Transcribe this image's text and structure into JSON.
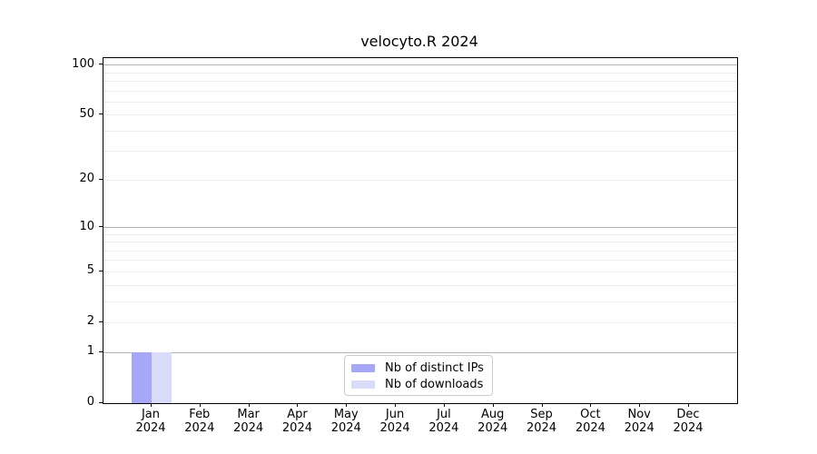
{
  "chart_data": {
    "type": "bar",
    "title": "velocyto.R 2024",
    "categories": [
      "Jan",
      "Feb",
      "Mar",
      "Apr",
      "May",
      "Jun",
      "Jul",
      "Aug",
      "Sep",
      "Oct",
      "Nov",
      "Dec"
    ],
    "category_year": "2024",
    "series": [
      {
        "name": "Nb of distinct IPs",
        "color": "#a7a7f7",
        "values": [
          1,
          0,
          0,
          0,
          0,
          0,
          0,
          0,
          0,
          0,
          0,
          0
        ]
      },
      {
        "name": "Nb of downloads",
        "color": "#dadaf9",
        "values": [
          1,
          0,
          0,
          0,
          0,
          0,
          0,
          0,
          0,
          0,
          0,
          0
        ]
      }
    ],
    "xlabel": "",
    "ylabel": "",
    "y_scale": "log1p",
    "ylim": [
      0,
      110
    ],
    "y_ticks": [
      0,
      1,
      2,
      5,
      10,
      20,
      50,
      100
    ],
    "y_gridlines": [
      1,
      2,
      3,
      4,
      5,
      6,
      7,
      8,
      9,
      10,
      20,
      30,
      40,
      50,
      60,
      70,
      80,
      90,
      100
    ],
    "y_major_gridlines": [
      1,
      10,
      100
    ],
    "grid": "horizontal",
    "legend_position": "bottom-center"
  },
  "colors": {
    "grid_major": "#b5b5b5",
    "grid_minor": "#ececec",
    "spine": "#000000",
    "text": "#000000",
    "legend_border": "#cccccc"
  }
}
